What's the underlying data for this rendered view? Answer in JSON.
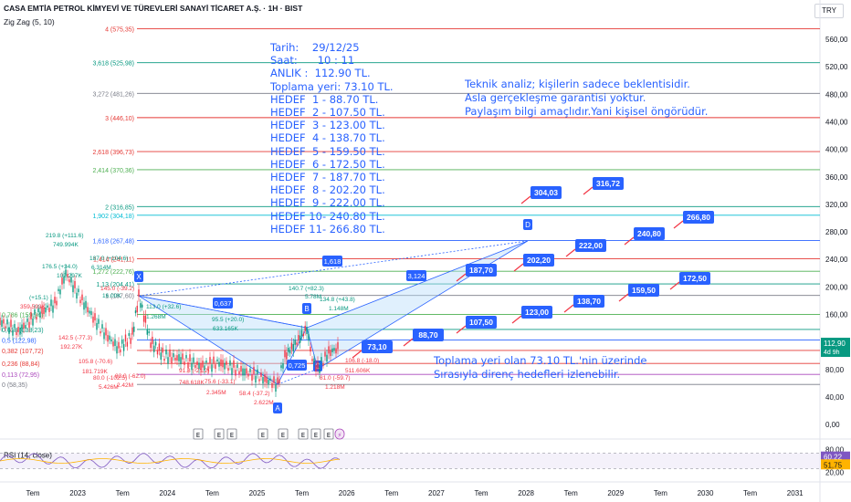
{
  "header": {
    "title": "CASA EMTİA PETROL KİMYEVİ VE TÜREVLERİ SANAYİ TİCARET A.Ş. · 1H · BIST",
    "indicator": "Zig Zag (5, 10)",
    "currency": "TRY"
  },
  "notes": {
    "top_left": "Tarih:    29/12/25\nSaat:      10 : 11\nANLIK :  112.90 TL.\nToplama yeri: 73.10 TL.\nHEDEF  1 - 88.70 TL.\nHEDEF  2 - 107.50 TL.\nHEDEF  3 - 123.00 TL.\nHEDEF  4 - 138.70 TL.\nHEDEF  5 - 159.50 TL.\nHEDEF  6 - 172.50 TL.\nHEDEF  7 - 187.70 TL.\nHEDEF  8 - 202.20 TL.\nHEDEF  9 - 222.00 TL.\nHEDEF 10- 240.80 TL.\nHEDEF 11- 266.80 TL.",
    "disclaimer": "Teknik analiz; kişilerin sadece beklentisidir.\nAsla gerçekleşme garantisi yoktur.\nPaylaşım bilgi amaçlıdır.Yani kişisel öngörüdür.",
    "bottom": "Toplama yeri olan 73.10 TL.'nin üzerinde\nSırasıyla direnç hedefleri izlenebilir."
  },
  "chart_data": [
    {
      "type": "line",
      "title": "",
      "x_ticks": [
        "Tem",
        "2023",
        "Tem",
        "2024",
        "Tem",
        "2025",
        "Tem",
        "2026",
        "Tem",
        "2027",
        "Tem",
        "2028",
        "Tem",
        "2029",
        "Tem",
        "2030",
        "Tem",
        "2031"
      ],
      "y_ticks": [
        560,
        520,
        480,
        440,
        400,
        360,
        320,
        280,
        240,
        200,
        160,
        120,
        80,
        40,
        0
      ],
      "y_tick_labels": [
        "560,00",
        "520,00",
        "480,00",
        "440,00",
        "400,00",
        "360,00",
        "320,00",
        "280,00",
        "240,00",
        "200,00",
        "160,00",
        "120,00",
        "80,00",
        "40,00",
        "0,00"
      ],
      "ylim": [
        -10,
        590
      ],
      "last_price": "112,90",
      "last_price_countdown": "4d 9h",
      "fib_levels": [
        {
          "label": "4 (575,35)",
          "value": 575.35,
          "color": "#e53935"
        },
        {
          "label": "3,618 (525,98)",
          "value": 525.98,
          "color": "#089981"
        },
        {
          "label": "3,272 (481,26)",
          "value": 481.26,
          "color": "#787b86"
        },
        {
          "label": "3 (446,10)",
          "value": 446.1,
          "color": "#e53935"
        },
        {
          "label": "2,618 (396,73)",
          "value": 396.73,
          "color": "#e53935"
        },
        {
          "label": "2,414 (370,36)",
          "value": 370.36,
          "color": "#4caf50"
        },
        {
          "label": "2 (316,85)",
          "value": 316.85,
          "color": "#089981"
        },
        {
          "label": "1,902 (304,18)",
          "value": 304.18,
          "color": "#00bcd4"
        },
        {
          "label": "1,618 (267,48)",
          "value": 267.48,
          "color": "#2962ff"
        },
        {
          "label": "1,414 (241,11)",
          "value": 241.11,
          "color": "#e53935"
        },
        {
          "label": "1,272 (222,76)",
          "value": 222.76,
          "color": "#4caf50"
        },
        {
          "label": "1,13 (204,41)",
          "value": 204.41,
          "color": "#089981"
        },
        {
          "label": "1 (187,60)",
          "value": 187.6,
          "color": "#787b86"
        },
        {
          "label": "0,786 (159,94)",
          "value": 159.94,
          "color": "#4caf50"
        },
        {
          "label": "0,618 (138,23)",
          "value": 138.23,
          "color": "#089981"
        },
        {
          "label": "0,5 (122,98)",
          "value": 122.98,
          "color": "#2962ff"
        },
        {
          "label": "0,382 (107,72)",
          "value": 107.72,
          "color": "#e53935"
        },
        {
          "label": "0,236 (88,84)",
          "value": 88.84,
          "color": "#e53935"
        },
        {
          "label": "0,113 (72,95)",
          "value": 72.95,
          "color": "#ab47bc"
        },
        {
          "label": "0 (58,35)",
          "value": 58.35,
          "color": "#787b86"
        }
      ],
      "target_boxes": [
        {
          "label": "73,10",
          "value": 73.1
        },
        {
          "label": "88,70",
          "value": 88.7
        },
        {
          "label": "107,50",
          "value": 107.5
        },
        {
          "label": "123,00",
          "value": 123.0
        },
        {
          "label": "138,70",
          "value": 138.7
        },
        {
          "label": "159,50",
          "value": 159.5
        },
        {
          "label": "172,50",
          "value": 172.5
        },
        {
          "label": "187,70",
          "value": 187.7
        },
        {
          "label": "202,20",
          "value": 202.2
        },
        {
          "label": "222,00",
          "value": 222.0
        },
        {
          "label": "240,80",
          "value": 240.8
        },
        {
          "label": "266,80",
          "value": 266.8
        },
        {
          "label": "304,03",
          "value": 304.03
        },
        {
          "label": "316,72",
          "value": 316.72
        }
      ],
      "harmonic_points": [
        "X",
        "A",
        "B",
        "C",
        "D"
      ],
      "harmonic_ratios": [
        "0,637",
        "0,725",
        "1,618",
        "3,124"
      ],
      "zigzag_labels": [
        "219.8 (+111.6)",
        "749.994K",
        "176.5 (+34.0)",
        "109.297K",
        "187.0 (+104.6)",
        "6.314M",
        "145.0 (-39.2)",
        "16.00K",
        "140.7 (+82.3)",
        "5.78M",
        "134.8 (+43.8)",
        "1.148M",
        "113.0 (+32.6)",
        "1.268M",
        "95.5 (+20.0)",
        "633.165K",
        "142.5 (-77.3)",
        "192.27K",
        "105.8 (-70.6)",
        "181.719K",
        "83.0 (-62.0)",
        "2.42M",
        "80.0 (-102.5)",
        "5.426M",
        "91.8 (-21.2)",
        "748.618K",
        "75.6 (-33.1)",
        "2.345M",
        "58.4 (-37.2)",
        "2.622M",
        "81.0 (-59.7)",
        "1.218M",
        "106.8 (-18.0)",
        "511.606K",
        "(+15.1)",
        "359.593K"
      ],
      "event_markers": [
        "E",
        "E",
        "E",
        "E",
        "E",
        "E",
        "E",
        "E",
        "⚡"
      ]
    },
    {
      "type": "line",
      "title": "RSI (14, close)",
      "y_ticks": [
        80,
        20
      ],
      "y_tick_labels": [
        "80,00",
        "20,00"
      ],
      "ylim": [
        0,
        100
      ],
      "upper_band": 70,
      "lower_band": 30,
      "series": [
        {
          "name": "RSI",
          "last": "60,22",
          "color": "#7e57c2"
        },
        {
          "name": "MA",
          "last": "51,75",
          "color": "#ffb300"
        }
      ]
    }
  ],
  "colors": {
    "up": "#089981",
    "down": "#f23645",
    "accent": "#2962ff",
    "harmonic_fill": "#bbdefb"
  }
}
